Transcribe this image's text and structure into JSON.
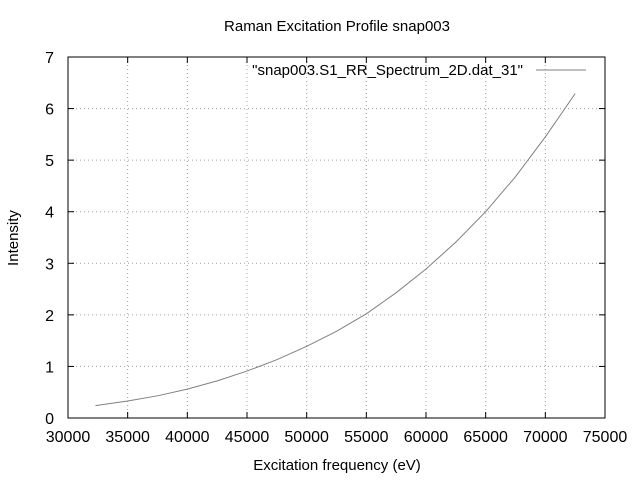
{
  "chart_data": {
    "type": "line",
    "title": "Raman Excitation Profile snap003",
    "xlabel": "Excitation frequency (eV)",
    "ylabel": "Intensity",
    "xlim": [
      30000,
      75000
    ],
    "ylim": [
      0,
      7
    ],
    "x_ticks": [
      30000,
      35000,
      40000,
      45000,
      50000,
      55000,
      60000,
      65000,
      70000,
      75000
    ],
    "y_ticks": [
      0,
      1,
      2,
      3,
      4,
      5,
      6,
      7
    ],
    "grid": true,
    "legend_position": "top-right",
    "series": [
      {
        "name": "\"snap003.S1_RR_Spectrum_2D.dat_31\"",
        "color": "#808080",
        "x": [
          32300,
          35000,
          37500,
          40000,
          42500,
          45000,
          47500,
          50000,
          52500,
          55000,
          57500,
          60000,
          62500,
          65000,
          67500,
          70000,
          72500
        ],
        "y": [
          0.24,
          0.33,
          0.43,
          0.56,
          0.72,
          0.91,
          1.13,
          1.39,
          1.68,
          2.02,
          2.43,
          2.89,
          3.41,
          4.0,
          4.68,
          5.45,
          6.29
        ]
      }
    ]
  }
}
